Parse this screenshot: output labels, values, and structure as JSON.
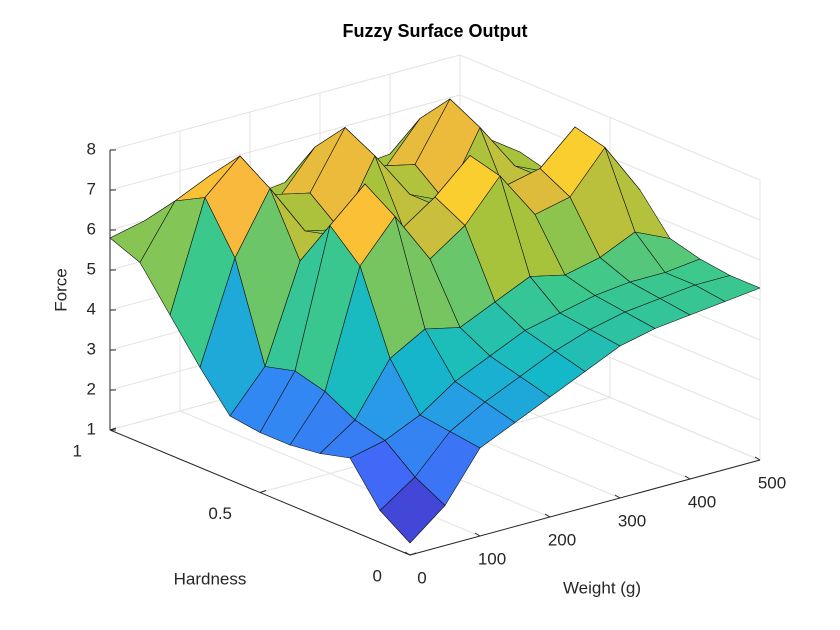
{
  "chart_data": {
    "type": "surface",
    "title": "Fuzzy Surface Output",
    "xlabel": "Weight (g)",
    "ylabel": "Hardness",
    "zlabel": "Force",
    "x": [
      0,
      50,
      100,
      150,
      200,
      250,
      300,
      350,
      400,
      450,
      500
    ],
    "y": [
      0,
      0.1,
      0.2,
      0.3,
      0.4,
      0.5,
      0.6,
      0.7,
      0.8,
      0.9,
      1
    ],
    "z": [
      [
        1.3,
        2.0,
        3.2,
        3.6,
        4.0,
        4.4,
        4.8,
        5.0,
        5.1,
        5.2,
        5.3
      ],
      [
        1.8,
        2.4,
        3.3,
        3.8,
        4.2,
        4.6,
        4.9,
        5.1,
        5.2,
        5.3,
        5.3
      ],
      [
        2.8,
        3.0,
        3.4,
        4.0,
        4.4,
        4.8,
        5.0,
        5.2,
        5.3,
        5.3,
        5.4
      ],
      [
        2.6,
        3.2,
        4.5,
        5.0,
        4.8,
        5.2,
        5.6,
        5.4,
        5.6,
        6.0,
        5.6
      ],
      [
        2.5,
        3.6,
        6.5,
        7.5,
        6.2,
        6.8,
        7.8,
        6.6,
        6.8,
        7.8,
        6.5
      ],
      [
        2.5,
        3.8,
        7.2,
        8.0,
        6.6,
        7.2,
        8.0,
        7.0,
        7.2,
        8.0,
        6.8
      ],
      [
        2.6,
        3.6,
        6.0,
        6.4,
        5.8,
        6.0,
        6.4,
        6.0,
        6.0,
        6.4,
        6.0
      ],
      [
        3.5,
        6.0,
        7.5,
        6.2,
        6.0,
        7.6,
        6.4,
        6.0,
        7.6,
        6.4,
        6.0
      ],
      [
        4.5,
        7.2,
        8.0,
        6.8,
        6.6,
        8.0,
        6.8,
        6.6,
        8.0,
        6.8,
        6.2
      ],
      [
        5.5,
        6.8,
        7.2,
        6.3,
        6.2,
        7.2,
        6.4,
        6.2,
        7.2,
        6.4,
        6.0
      ],
      [
        5.8,
        6.0,
        6.0,
        5.9,
        5.9,
        6.0,
        5.9,
        5.9,
        6.0,
        5.9,
        5.8
      ]
    ],
    "xlim": [
      0,
      500
    ],
    "ylim": [
      0,
      1
    ],
    "zlim": [
      1,
      8
    ],
    "xticks": [
      0,
      100,
      200,
      300,
      400,
      500
    ],
    "yticks": [
      0,
      0.5,
      1
    ],
    "zticks": [
      1,
      2,
      3,
      4,
      5,
      6,
      7,
      8
    ],
    "grid": true,
    "colormap": "parula"
  }
}
